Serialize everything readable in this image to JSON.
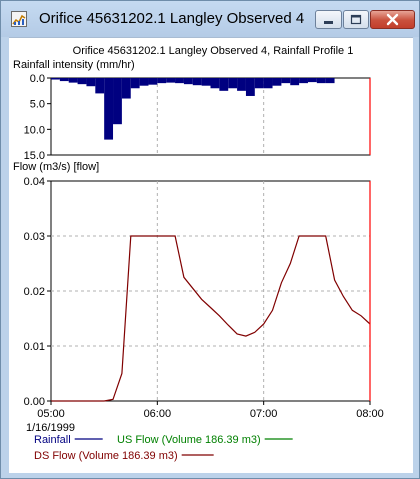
{
  "window": {
    "title": "Orifice 45631202.1 Langley Observed 4",
    "buttons": {
      "minimize": "minimize-icon",
      "maximize": "maximize-icon",
      "close": "close-icon"
    }
  },
  "chart_data": {
    "type": "line",
    "title": "Orifice 45631202.1 Langley Observed 4, Rainfall Profile 1",
    "rainfall_panel": {
      "type": "bar",
      "ylabel": "Rainfall intensity (mm/hr)",
      "y_inverted": true,
      "ylim": [
        0,
        15
      ],
      "yticks": [
        "0.0",
        "5.0",
        "10.0",
        "15.0"
      ],
      "color": "#000080",
      "interval_minutes": 5,
      "start": "05:00",
      "intensities": [
        0.3,
        0.6,
        0.9,
        1.2,
        1.6,
        3.0,
        12.0,
        9.0,
        4.0,
        2.0,
        1.5,
        1.3,
        1.0,
        0.9,
        1.0,
        1.2,
        1.4,
        1.5,
        2.0,
        2.5,
        2.0,
        2.5,
        3.5,
        2.0,
        2.0,
        1.5,
        1.0,
        1.4,
        1.0,
        0.8,
        1.0,
        1.0,
        0.0,
        0.0,
        0.0,
        0.0
      ]
    },
    "flow_panel": {
      "ylabel": "Flow (m3/s) [flow]",
      "ylim": [
        0,
        0.04
      ],
      "yticks": [
        "0.00",
        "0.01",
        "0.02",
        "0.03",
        "0.04"
      ],
      "series": [
        {
          "name": "DS Flow (Volume 186.39 m3)",
          "color": "#800000",
          "x_minutes": [
            0,
            30,
            35,
            40,
            45,
            60,
            70,
            75,
            85,
            90,
            95,
            100,
            105,
            110,
            115,
            120,
            125,
            130,
            135,
            140,
            145,
            150,
            155,
            160,
            165,
            170,
            175,
            180
          ],
          "values": [
            0,
            0,
            0.0003,
            0.005,
            0.03,
            0.03,
            0.03,
            0.0225,
            0.0185,
            0.017,
            0.0155,
            0.0138,
            0.0122,
            0.0118,
            0.0125,
            0.014,
            0.0165,
            0.0215,
            0.025,
            0.03,
            0.03,
            0.03,
            0.03,
            0.022,
            0.019,
            0.0165,
            0.0155,
            0.014
          ]
        },
        {
          "name": "US Flow (Volume 186.39 m3)",
          "color": "#008000",
          "x_minutes": [],
          "values": []
        }
      ]
    },
    "x_axis": {
      "ticks": [
        "05:00",
        "06:00",
        "07:00",
        "08:00"
      ],
      "range_minutes": [
        0,
        180
      ],
      "date": "1/16/1999"
    },
    "legend": [
      {
        "name": "Rainfall",
        "color": "#000080"
      },
      {
        "name": "US Flow (Volume 186.39 m3)",
        "color": "#008000"
      },
      {
        "name": "DS Flow (Volume 186.39 m3)",
        "color": "#800000"
      }
    ],
    "grid": true,
    "end_marker_color": "#ff0000"
  }
}
